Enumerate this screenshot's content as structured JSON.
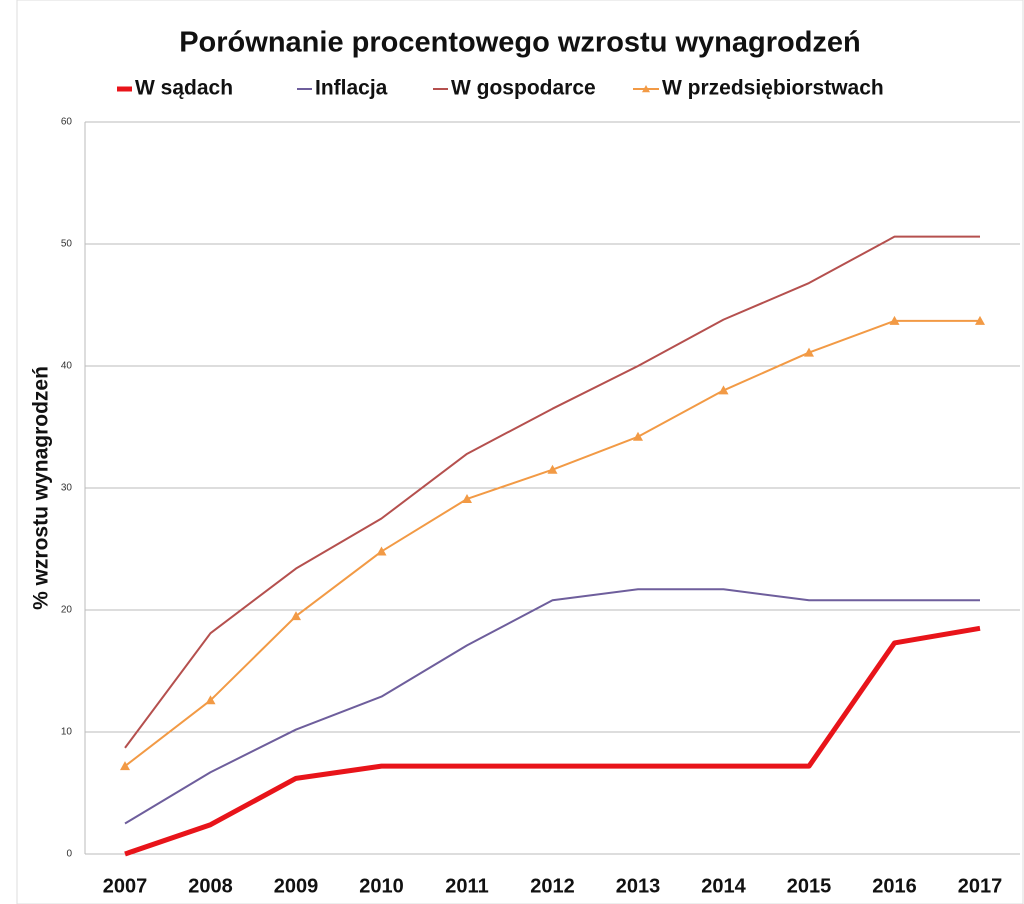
{
  "chart_data": {
    "type": "line",
    "title": "Porównanie procentowego wzrostu wynagrodzeń",
    "y_label": "% wzrostu wynagrodzeń",
    "categories": [
      "2007",
      "2008",
      "2009",
      "2010",
      "2011",
      "2012",
      "2013",
      "2014",
      "2015",
      "2016",
      "2017"
    ],
    "series": [
      {
        "name": "W sądach",
        "color": "#e8141a",
        "line_width": 5,
        "values": [
          0,
          2.4,
          6.2,
          7.2,
          7.2,
          7.2,
          7.2,
          7.2,
          7.2,
          17.3,
          18.5
        ]
      },
      {
        "name": "Inflacja",
        "color": "#6e5e9c",
        "line_width": 2,
        "values": [
          2.5,
          6.7,
          10.2,
          12.9,
          17.1,
          20.8,
          21.7,
          21.7,
          20.8,
          20.8,
          20.8
        ]
      },
      {
        "name": "W gospodarce",
        "color": "#b5504e",
        "line_width": 2,
        "values": [
          8.7,
          18.1,
          23.4,
          27.5,
          32.8,
          36.5,
          40.0,
          43.8,
          46.8,
          50.6,
          50.6
        ]
      },
      {
        "name": "W przedsiębiorstwach",
        "color": "#f29a45",
        "line_width": 2,
        "marker": "triangle",
        "values": [
          7.2,
          12.6,
          19.5,
          24.8,
          29.1,
          31.5,
          34.2,
          38.0,
          41.1,
          43.7,
          43.7
        ]
      }
    ],
    "ylim": [
      0,
      60
    ],
    "yticks": [
      0,
      10,
      20,
      30,
      40,
      50,
      60
    ],
    "grid": true,
    "legend": "top"
  }
}
